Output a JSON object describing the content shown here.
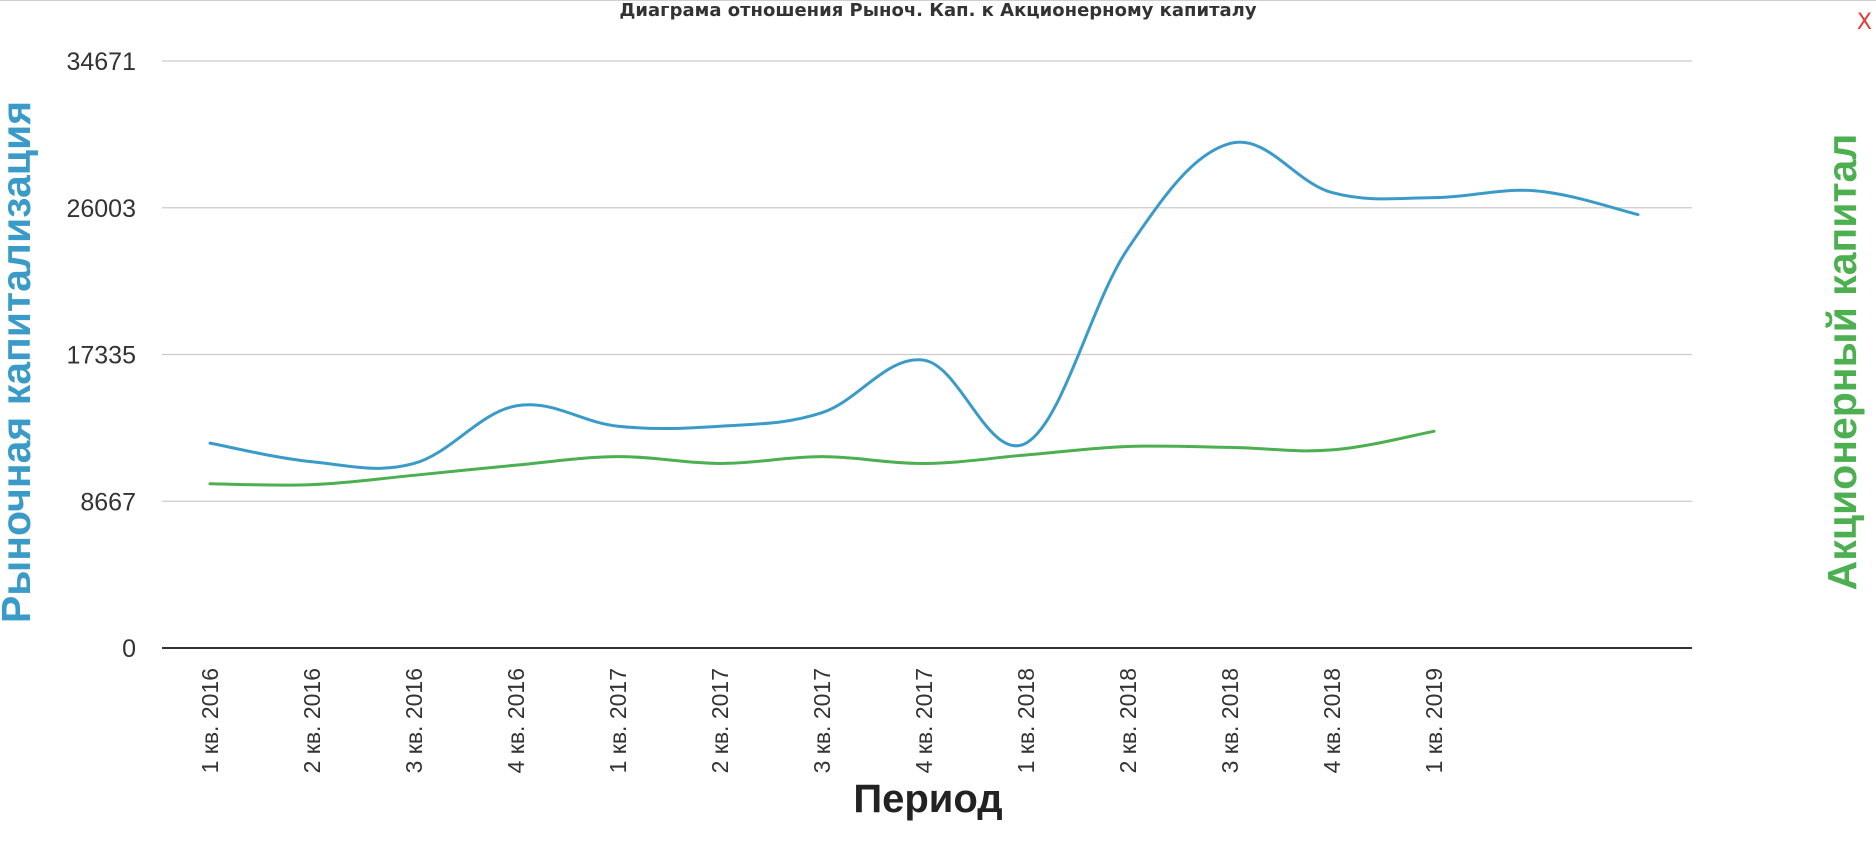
{
  "chart_title": "Диаграма отношения Рыноч. Кап. к Акционерному капиталу",
  "close_label": "X",
  "colors": {
    "market_cap": "#3a9bc9",
    "equity": "#4caf50",
    "grid": "#cccccc",
    "axis": "#333333"
  },
  "chart_data": {
    "type": "line",
    "title": "Диаграма отношения Рыноч. Кап. к Акционерному капиталу",
    "xlabel": "Период",
    "ylabel_left": "Рыночная капитализация",
    "ylabel_right": "Акционерный капитал",
    "yticks": [
      "0",
      "8667",
      "17335",
      "26003",
      "34671"
    ],
    "ylim": [
      0,
      34671
    ],
    "grid": true,
    "categories": [
      "1 кв. 2016",
      "2 кв. 2016",
      "3 кв. 2016",
      "4 кв. 2016",
      "1 кв. 2017",
      "2 кв. 2017",
      "3 кв. 2017",
      "4 кв. 2017",
      "1 кв. 2018",
      "2 кв. 2018",
      "3 кв. 2018",
      "4 кв. 2018",
      "1 кв. 2019",
      "",
      ""
    ],
    "series": [
      {
        "name": "Рыночная капитализация",
        "color": "#3a9bc9",
        "values": [
          12100,
          11000,
          10900,
          14300,
          13100,
          13100,
          13900,
          17000,
          12100,
          23600,
          29800,
          26900,
          26600,
          27000,
          25600
        ]
      },
      {
        "name": "Акционерный капитал",
        "color": "#4caf50",
        "values": [
          9700,
          9650,
          10200,
          10800,
          11300,
          10900,
          11300,
          10900,
          11400,
          11900,
          11850,
          11700,
          12800,
          null,
          null
        ]
      }
    ]
  }
}
